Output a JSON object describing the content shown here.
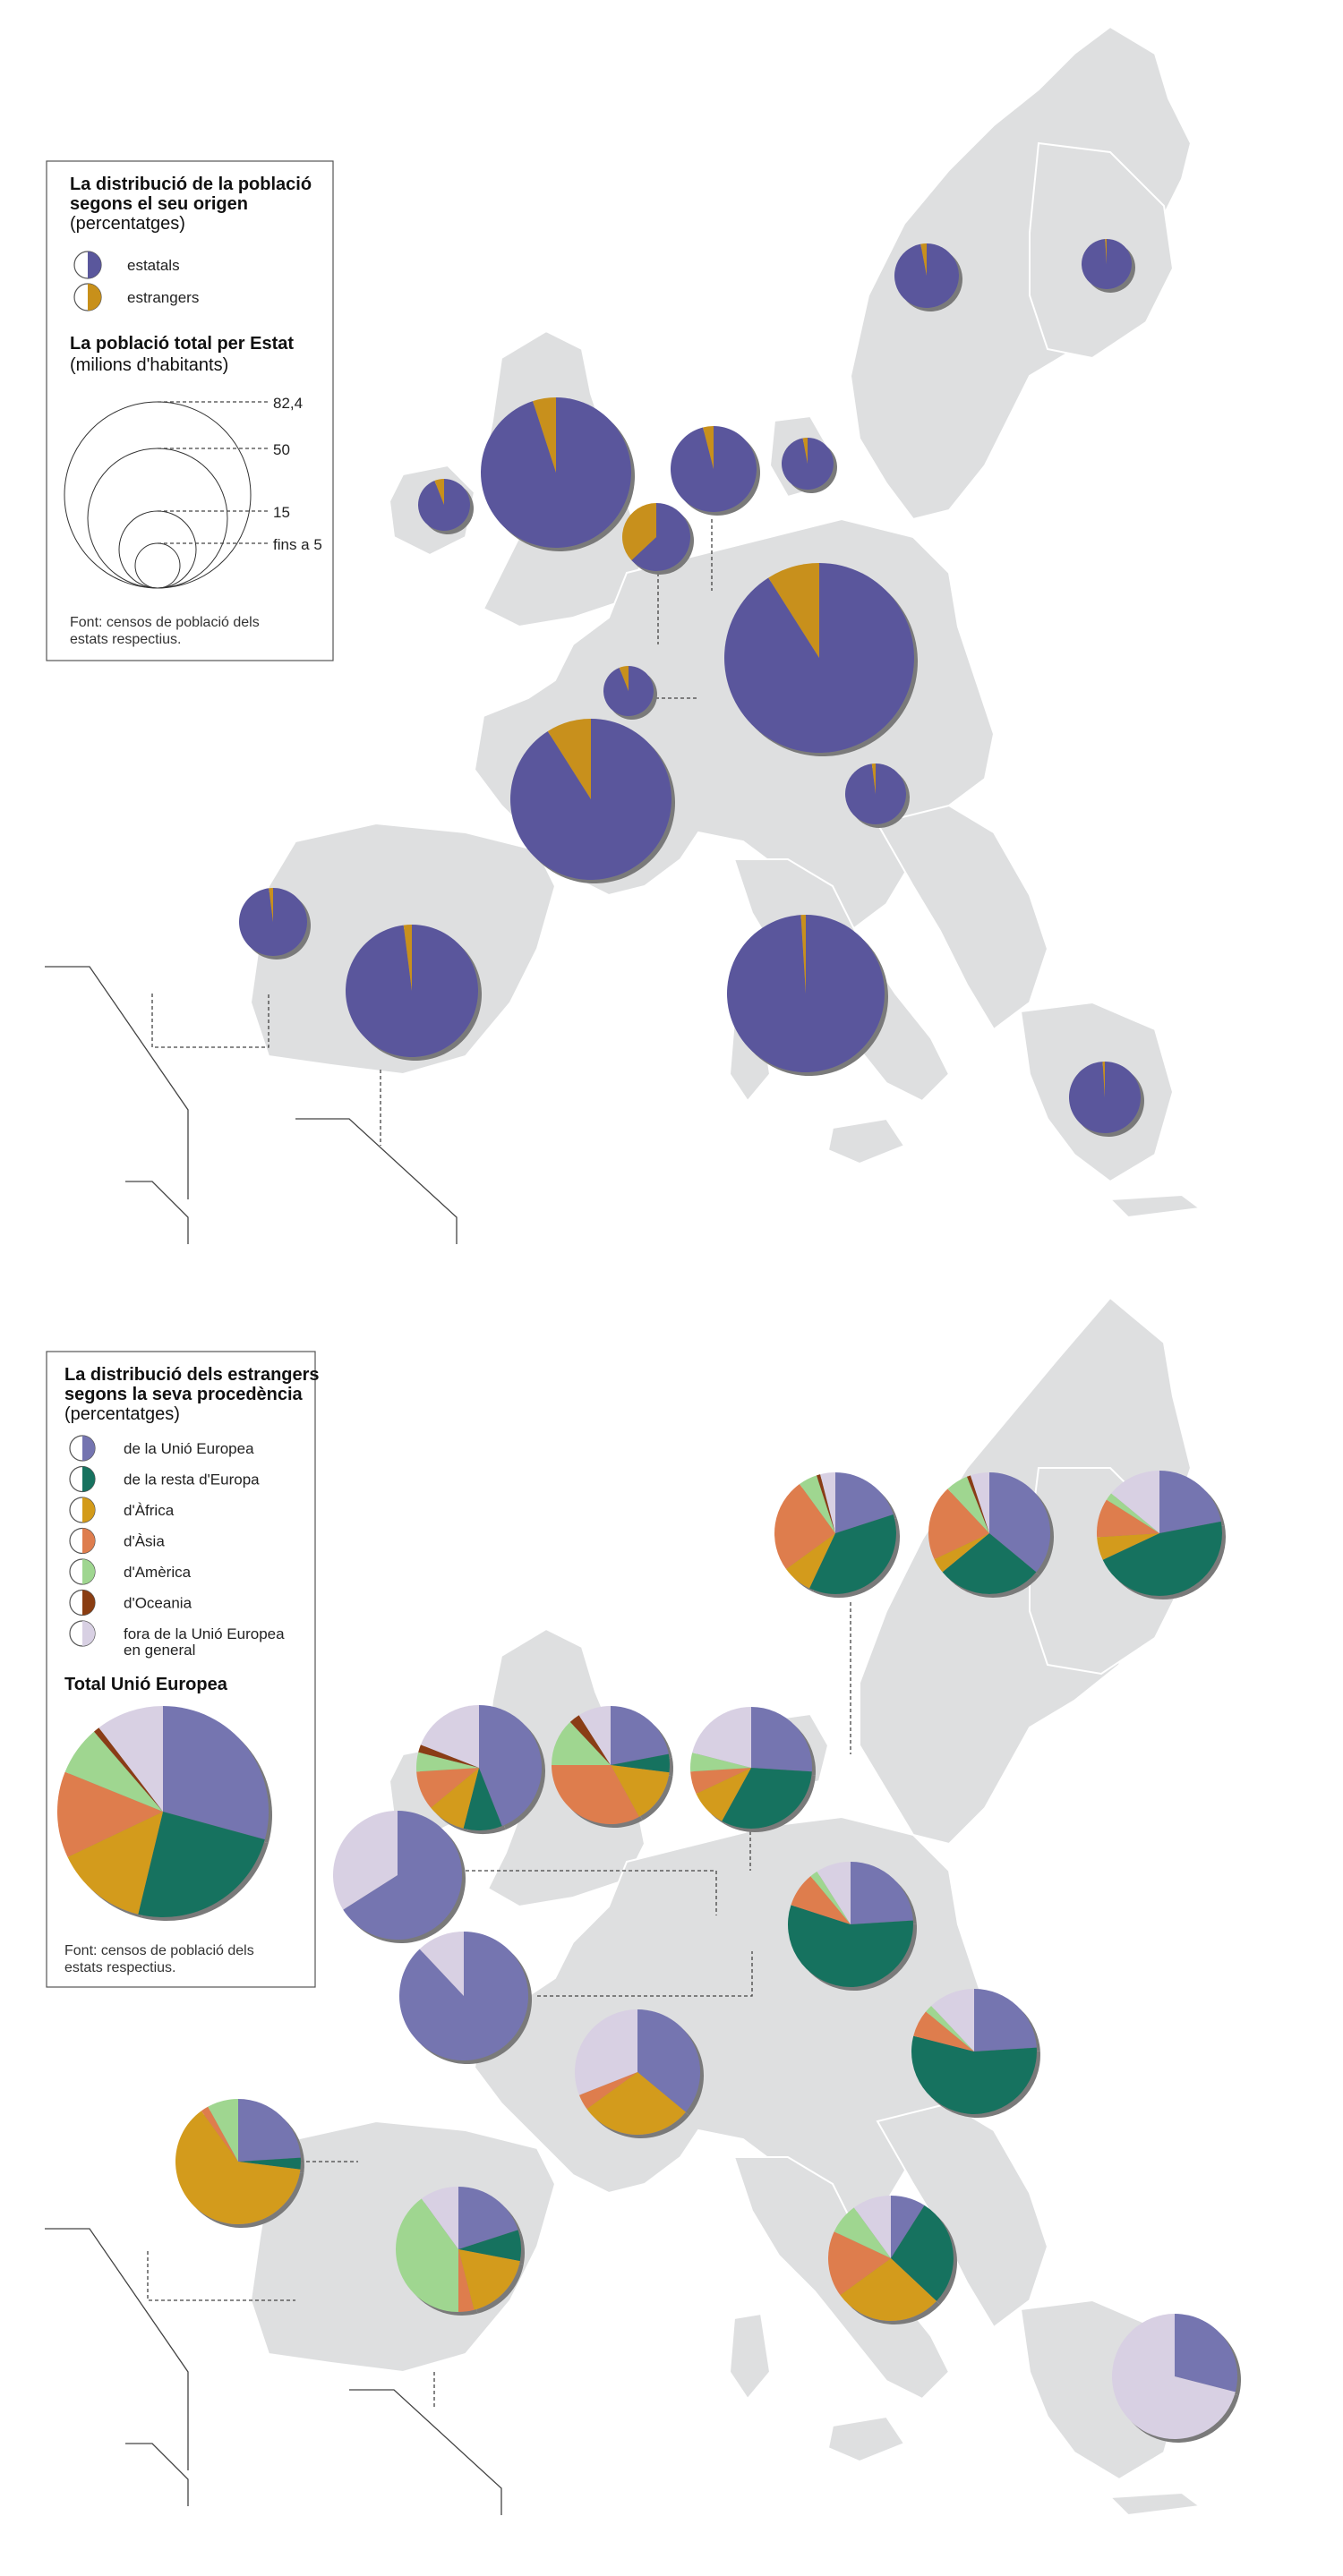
{
  "colors": {
    "statals": "#5a579c",
    "estrangers": "#c8901a",
    "ue": "#7474b0",
    "resta_europa": "#17725f",
    "africa": "#d39b1a",
    "asia": "#de7d4e",
    "america": "#9fd690",
    "oceania": "#8a3d12",
    "fora_ue": "#d8d0e3",
    "land": "#dedfe0",
    "shadow": "#7a7a7a"
  },
  "legend1": {
    "title_line1": "La distribució de la població",
    "title_line2": "segons el seu origen",
    "subtitle": "(percentatges)",
    "items": [
      {
        "label": "estatals",
        "color_key": "statals"
      },
      {
        "label": "estrangers",
        "color_key": "estrangers"
      }
    ],
    "size_title": "La població total per Estat",
    "size_subtitle": "(milions d'habitants)",
    "size_labels": [
      "82,4",
      "50",
      "15",
      "fins a 5"
    ],
    "source_line1": "Font: censos de població dels",
    "source_line2": "estats respectius."
  },
  "legend2": {
    "title_line1": "La distribució dels estrangers",
    "title_line2": "segons la seva procedència",
    "subtitle": "(percentatges)",
    "items": [
      {
        "label": "de la Unió Europea",
        "color_key": "ue"
      },
      {
        "label": "de la resta d'Europa",
        "color_key": "resta_europa"
      },
      {
        "label": "d'Àfrica",
        "color_key": "africa"
      },
      {
        "label": "d'Àsia",
        "color_key": "asia"
      },
      {
        "label": "d'Amèrica",
        "color_key": "america"
      },
      {
        "label": "d'Oceania",
        "color_key": "oceania"
      },
      {
        "label": "fora de la Unió Europea",
        "label2": "en general",
        "color_key": "fora_ue"
      }
    ],
    "total_title": "Total Unió Europea",
    "source_line1": "Font: censos de població dels",
    "source_line2": "estats respectius."
  },
  "chart_data": [
    {
      "type": "pie",
      "series_keys": [
        "statals",
        "estrangers"
      ],
      "pies": [
        {
          "pct_estrangers": 3
        },
        {
          "pct_estrangers": 1
        },
        {
          "pct_estrangers": 5
        },
        {
          "pct_estrangers": 6
        },
        {
          "pct_estrangers": 4
        },
        {
          "pct_estrangers": 3
        },
        {
          "pct_estrangers": 37
        },
        {
          "pct_estrangers": 9
        },
        {
          "pct_estrangers": 6
        },
        {
          "pct_estrangers": 9
        },
        {
          "pct_estrangers": 2
        },
        {
          "pct_estrangers": 2
        },
        {
          "pct_estrangers": 2
        },
        {
          "pct_estrangers": 1
        }
      ]
    },
    {
      "type": "pie",
      "series_keys": [
        "ue",
        "resta_europa",
        "africa",
        "asia",
        "america",
        "oceania",
        "fora_ue"
      ],
      "total_ue": [
        31,
        26,
        15,
        14,
        8,
        1,
        11
      ],
      "pies": [
        [
          20,
          37,
          8,
          25,
          5,
          1,
          4
        ],
        [
          36,
          28,
          4,
          20,
          6,
          1,
          5
        ],
        [
          22,
          46,
          6,
          10,
          2,
          0,
          14
        ],
        [
          44,
          10,
          10,
          10,
          5,
          2,
          19
        ],
        [
          22,
          5,
          15,
          33,
          13,
          3,
          9
        ],
        [
          26,
          32,
          10,
          6,
          5,
          0,
          21
        ],
        [
          66,
          0,
          0,
          0,
          0,
          0,
          34
        ],
        [
          24,
          56,
          0,
          9,
          2,
          0,
          9
        ],
        [
          88,
          0,
          0,
          0,
          0,
          0,
          12
        ],
        [
          36,
          0,
          29,
          4,
          0,
          0,
          31
        ],
        [
          24,
          55,
          0,
          7,
          2,
          0,
          12
        ],
        [
          24,
          3,
          63,
          2,
          8,
          0,
          0
        ],
        [
          20,
          8,
          18,
          4,
          40,
          0,
          10
        ],
        [
          9,
          28,
          28,
          17,
          8,
          0,
          10
        ],
        [
          29,
          0,
          0,
          0,
          0,
          0,
          71
        ]
      ]
    }
  ]
}
